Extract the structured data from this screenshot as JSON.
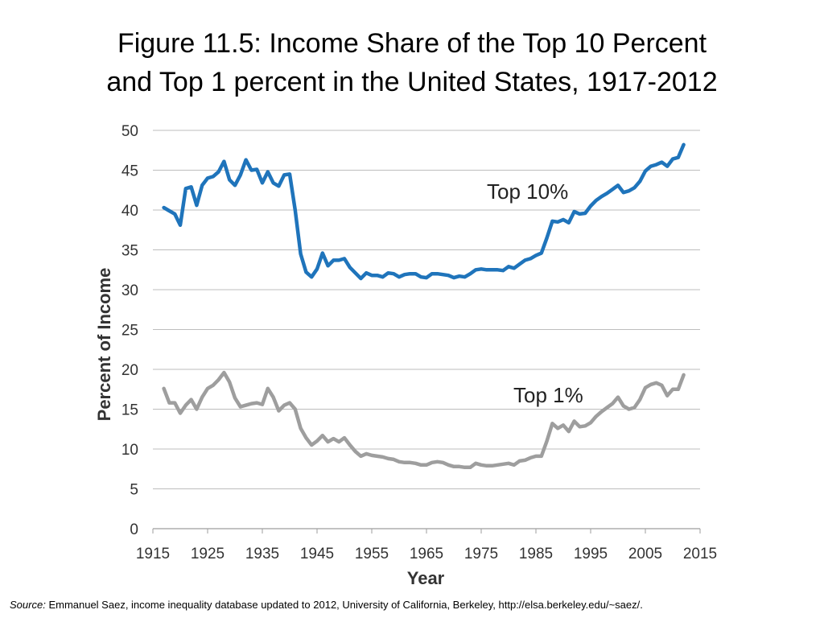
{
  "title_line1": "Figure 11.5: Income Share of the Top 10 Percent",
  "title_line2": "and Top 1 percent in the United States, 1917-2012",
  "source_label": "Source:",
  "source_text": "Emmanuel Saez, income inequality database updated to 2012, University of California, Berkeley, http://elsa.berkeley.edu/~saez/.",
  "chart_data": {
    "type": "line",
    "xlabel": "Year",
    "ylabel": "Percent of Income",
    "xlim": [
      1915,
      2015
    ],
    "ylim": [
      0,
      50
    ],
    "xticks": [
      1915,
      1925,
      1935,
      1945,
      1955,
      1965,
      1975,
      1985,
      1995,
      2005,
      2015
    ],
    "yticks": [
      0,
      5,
      10,
      15,
      20,
      25,
      30,
      35,
      40,
      45,
      50
    ],
    "grid": "horizontal",
    "legend": "none",
    "series": [
      {
        "name": "Top 10%",
        "color": "#1f74bb",
        "x": [
          1917,
          1918,
          1919,
          1920,
          1921,
          1922,
          1923,
          1924,
          1925,
          1926,
          1927,
          1928,
          1929,
          1930,
          1931,
          1932,
          1933,
          1934,
          1935,
          1936,
          1937,
          1938,
          1939,
          1940,
          1941,
          1942,
          1943,
          1944,
          1945,
          1946,
          1947,
          1948,
          1949,
          1950,
          1951,
          1952,
          1953,
          1954,
          1955,
          1956,
          1957,
          1958,
          1959,
          1960,
          1961,
          1962,
          1963,
          1964,
          1965,
          1966,
          1967,
          1968,
          1969,
          1970,
          1971,
          1972,
          1973,
          1974,
          1975,
          1976,
          1977,
          1978,
          1979,
          1980,
          1981,
          1982,
          1983,
          1984,
          1985,
          1986,
          1987,
          1988,
          1989,
          1990,
          1991,
          1992,
          1993,
          1994,
          1995,
          1996,
          1997,
          1998,
          1999,
          2000,
          2001,
          2002,
          2003,
          2004,
          2005,
          2006,
          2007,
          2008,
          2009,
          2010,
          2011,
          2012
        ],
        "y": [
          40.3,
          39.9,
          39.5,
          38.1,
          42.7,
          42.9,
          40.6,
          43.1,
          44.0,
          44.2,
          44.8,
          46.1,
          43.8,
          43.1,
          44.4,
          46.3,
          45.0,
          45.1,
          43.4,
          44.8,
          43.4,
          43.0,
          44.4,
          44.5,
          40.0,
          34.5,
          32.2,
          31.6,
          32.6,
          34.6,
          33.0,
          33.7,
          33.7,
          33.9,
          32.8,
          32.1,
          31.4,
          32.1,
          31.8,
          31.8,
          31.6,
          32.1,
          32.0,
          31.6,
          31.9,
          32.0,
          32.0,
          31.6,
          31.5,
          32.0,
          32.0,
          31.9,
          31.8,
          31.5,
          31.7,
          31.6,
          32.0,
          32.5,
          32.6,
          32.5,
          32.5,
          32.5,
          32.4,
          32.9,
          32.7,
          33.2,
          33.7,
          33.9,
          34.3,
          34.6,
          36.5,
          38.6,
          38.5,
          38.8,
          38.4,
          39.8,
          39.5,
          39.6,
          40.5,
          41.2,
          41.7,
          42.1,
          42.6,
          43.1,
          42.2,
          42.4,
          42.8,
          43.6,
          44.9,
          45.5,
          45.7,
          46.0,
          45.5,
          46.4,
          46.6,
          48.2
        ]
      },
      {
        "name": "Top 1%",
        "color": "#9e9e9e",
        "x": [
          1917,
          1918,
          1919,
          1920,
          1921,
          1922,
          1923,
          1924,
          1925,
          1926,
          1927,
          1928,
          1929,
          1930,
          1931,
          1932,
          1933,
          1934,
          1935,
          1936,
          1937,
          1938,
          1939,
          1940,
          1941,
          1942,
          1943,
          1944,
          1945,
          1946,
          1947,
          1948,
          1949,
          1950,
          1951,
          1952,
          1953,
          1954,
          1955,
          1956,
          1957,
          1958,
          1959,
          1960,
          1961,
          1962,
          1963,
          1964,
          1965,
          1966,
          1967,
          1968,
          1969,
          1970,
          1971,
          1972,
          1973,
          1974,
          1975,
          1976,
          1977,
          1978,
          1979,
          1980,
          1981,
          1982,
          1983,
          1984,
          1985,
          1986,
          1987,
          1988,
          1989,
          1990,
          1991,
          1992,
          1993,
          1994,
          1995,
          1996,
          1997,
          1998,
          1999,
          2000,
          2001,
          2002,
          2003,
          2004,
          2005,
          2006,
          2007,
          2008,
          2009,
          2010,
          2011,
          2012
        ],
        "y": [
          17.6,
          15.8,
          15.8,
          14.5,
          15.5,
          16.2,
          15.0,
          16.5,
          17.6,
          18.0,
          18.7,
          19.6,
          18.4,
          16.4,
          15.3,
          15.5,
          15.7,
          15.8,
          15.6,
          17.6,
          16.5,
          14.8,
          15.5,
          15.8,
          15.0,
          12.6,
          11.4,
          10.5,
          11.0,
          11.7,
          10.9,
          11.3,
          10.9,
          11.4,
          10.5,
          9.7,
          9.1,
          9.4,
          9.2,
          9.1,
          9.0,
          8.8,
          8.7,
          8.4,
          8.3,
          8.3,
          8.2,
          8.0,
          8.0,
          8.3,
          8.4,
          8.3,
          8.0,
          7.8,
          7.8,
          7.7,
          7.7,
          8.2,
          8.0,
          7.9,
          7.9,
          8.0,
          8.1,
          8.2,
          8.0,
          8.5,
          8.6,
          8.9,
          9.1,
          9.1,
          11.0,
          13.2,
          12.6,
          13.0,
          12.2,
          13.5,
          12.8,
          12.9,
          13.3,
          14.1,
          14.7,
          15.2,
          15.7,
          16.5,
          15.4,
          15.0,
          15.2,
          16.2,
          17.7,
          18.1,
          18.3,
          18.0,
          16.7,
          17.5,
          17.5,
          19.3
        ]
      }
    ],
    "annotations": [
      "Top 10%",
      "Top 1%"
    ]
  }
}
